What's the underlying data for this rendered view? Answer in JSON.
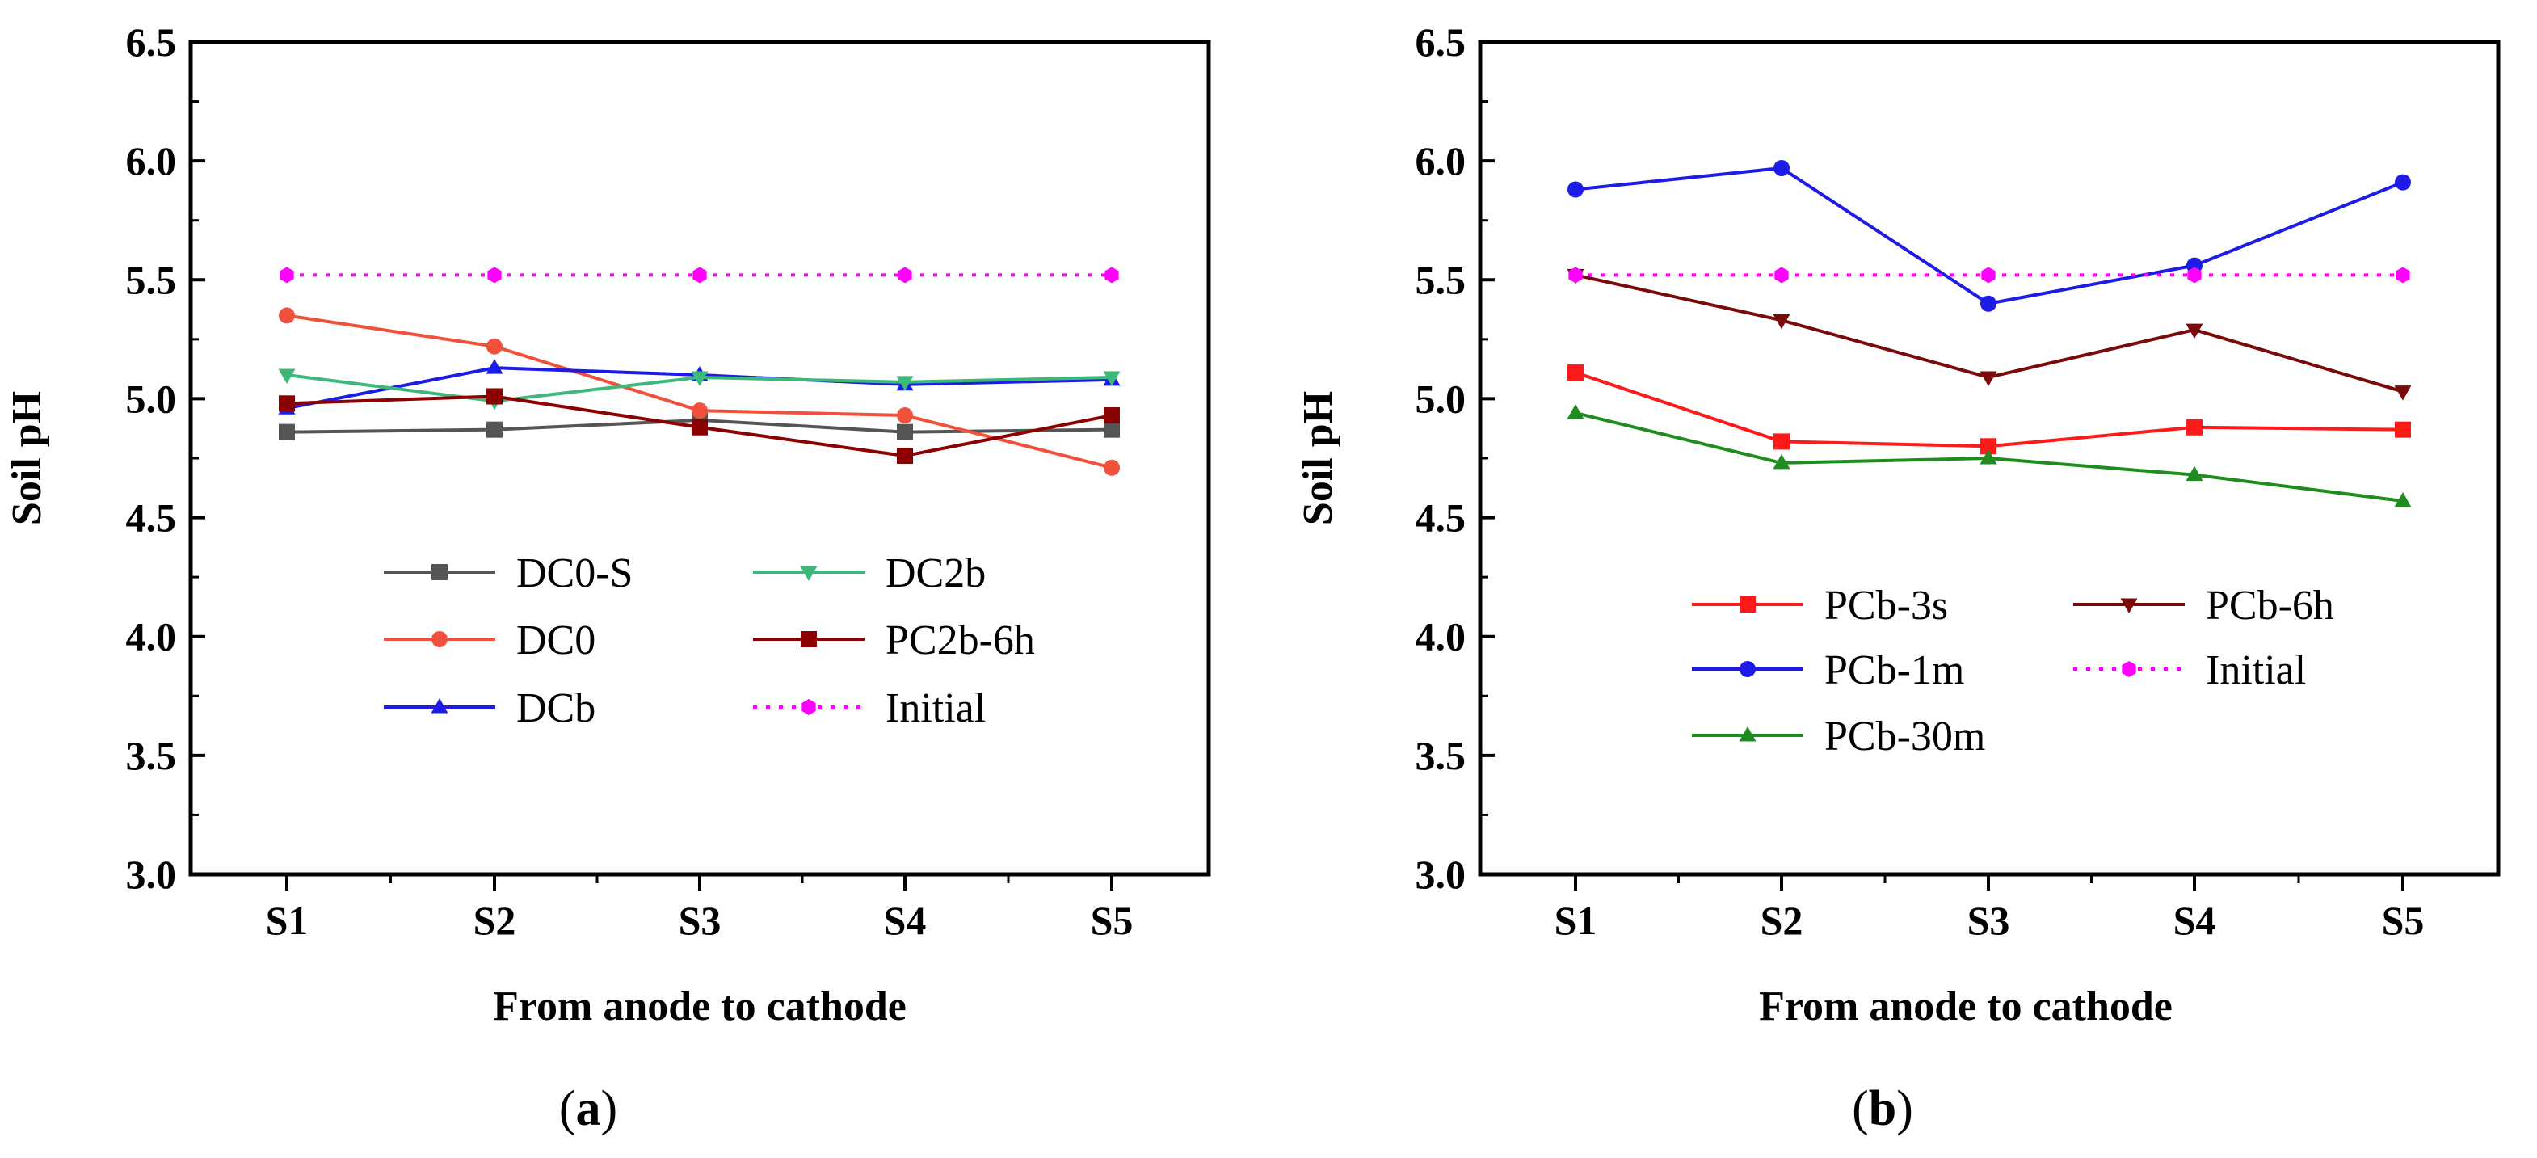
{
  "chart_data": [
    {
      "type": "line",
      "panel_label": "a",
      "title": "",
      "xlabel": "From anode to cathode",
      "ylabel": "Soil pH",
      "categories": [
        "S1",
        "S2",
        "S3",
        "S4",
        "S5"
      ],
      "ylim": [
        3.0,
        6.5
      ],
      "yticks": [
        "3.0",
        "3.5",
        "4.0",
        "4.5",
        "5.0",
        "5.5",
        "6.0",
        "6.5"
      ],
      "grid": false,
      "legend_position": "center",
      "legend_columns": 2,
      "series": [
        {
          "name": "DC0-S",
          "values": [
            4.86,
            4.87,
            4.91,
            4.86,
            4.87
          ],
          "color": "#555555",
          "marker": "square",
          "dash": "solid"
        },
        {
          "name": "DC0",
          "values": [
            5.35,
            5.22,
            4.95,
            4.93,
            4.71
          ],
          "color": "#f0503c",
          "marker": "circle",
          "dash": "solid"
        },
        {
          "name": "DCb",
          "values": [
            4.96,
            5.13,
            5.1,
            5.06,
            5.08
          ],
          "color": "#1c1ce6",
          "marker": "triangle-up",
          "dash": "solid"
        },
        {
          "name": "DC2b",
          "values": [
            5.1,
            4.99,
            5.09,
            5.07,
            5.09
          ],
          "color": "#3cb878",
          "marker": "triangle-down",
          "dash": "solid"
        },
        {
          "name": "PC2b-6h",
          "values": [
            4.98,
            5.01,
            4.88,
            4.76,
            4.93
          ],
          "color": "#8b0000",
          "marker": "square",
          "dash": "solid"
        },
        {
          "name": "Initial",
          "values": [
            5.52,
            5.52,
            5.52,
            5.52,
            5.52
          ],
          "color": "#ff00ff",
          "marker": "hexagon",
          "dash": "dotted"
        }
      ]
    },
    {
      "type": "line",
      "panel_label": "b",
      "title": "",
      "xlabel": "From anode to cathode",
      "ylabel": "Soil pH",
      "categories": [
        "S1",
        "S2",
        "S3",
        "S4",
        "S5"
      ],
      "ylim": [
        3.0,
        6.5
      ],
      "yticks": [
        "3.0",
        "3.5",
        "4.0",
        "4.5",
        "5.0",
        "5.5",
        "6.0",
        "6.5"
      ],
      "grid": false,
      "legend_position": "lower-center",
      "legend_columns": 2,
      "series": [
        {
          "name": "PCb-3s",
          "values": [
            5.11,
            4.82,
            4.8,
            4.88,
            4.87
          ],
          "color": "#ff1a1a",
          "marker": "square",
          "dash": "solid"
        },
        {
          "name": "PCb-1m",
          "values": [
            5.88,
            5.97,
            5.4,
            5.56,
            5.91
          ],
          "color": "#1c1ce6",
          "marker": "circle",
          "dash": "solid"
        },
        {
          "name": "PCb-30m",
          "values": [
            4.94,
            4.73,
            4.75,
            4.68,
            4.57
          ],
          "color": "#1e8c1e",
          "marker": "triangle-up",
          "dash": "solid"
        },
        {
          "name": "PCb-6h",
          "values": [
            5.52,
            5.33,
            5.09,
            5.29,
            5.03
          ],
          "color": "#7a0a0a",
          "marker": "triangle-down",
          "dash": "solid"
        },
        {
          "name": "Initial",
          "values": [
            5.52,
            5.52,
            5.52,
            5.52,
            5.52
          ],
          "color": "#ff00ff",
          "marker": "hexagon",
          "dash": "dotted"
        }
      ]
    }
  ]
}
